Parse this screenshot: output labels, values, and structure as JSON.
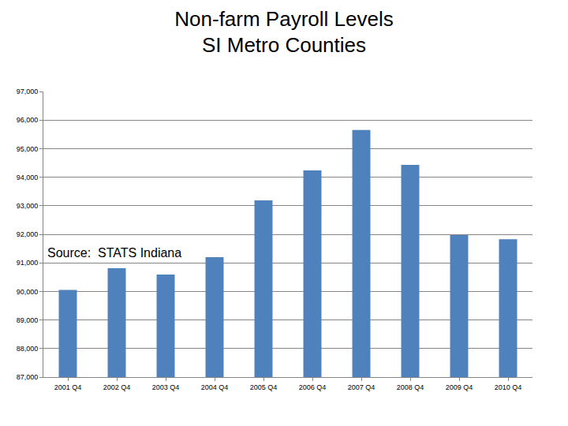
{
  "chart_data": {
    "type": "bar",
    "title": "Non-farm Payroll Levels",
    "subtitle": "SI Metro Counties",
    "categories": [
      "2001 Q4",
      "2002 Q4",
      "2003 Q4",
      "2004 Q4",
      "2005 Q4",
      "2006 Q4",
      "2007 Q4",
      "2008 Q4",
      "2009 Q4",
      "2010 Q4"
    ],
    "values": [
      90050,
      90810,
      90590,
      91200,
      93190,
      94240,
      95650,
      94430,
      91970,
      91830
    ],
    "color": "#4f81bd",
    "ylim": [
      87000,
      97000
    ],
    "yticks": [
      {
        "value": 87000,
        "label": "87,000"
      },
      {
        "value": 88000,
        "label": "88,000"
      },
      {
        "value": 89000,
        "label": "89,000"
      },
      {
        "value": 90000,
        "label": "90,000"
      },
      {
        "value": 91000,
        "label": "91,000"
      },
      {
        "value": 92000,
        "label": "92,000"
      },
      {
        "value": 93000,
        "label": "93,000"
      },
      {
        "value": 94000,
        "label": "94,000"
      },
      {
        "value": 95000,
        "label": "95,000"
      },
      {
        "value": 96000,
        "label": "96,000"
      },
      {
        "value": 97000,
        "label": "97,000"
      }
    ],
    "grid": true,
    "annotations": [
      {
        "text": "Source:  STATS Indiana"
      }
    ]
  }
}
